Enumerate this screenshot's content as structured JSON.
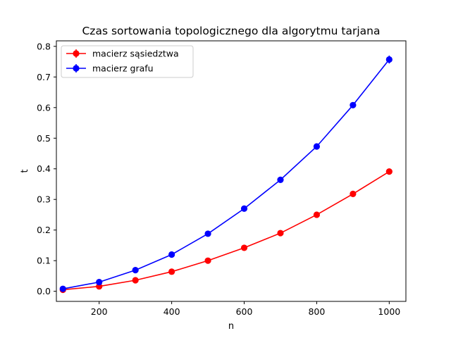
{
  "chart_data": {
    "type": "line",
    "title": "Czas sortowania topologicznego dla algorytmu tarjana",
    "xlabel": "n",
    "ylabel": "t",
    "xlim": [
      82,
      1046
    ],
    "ylim": [
      -0.033,
      0.818
    ],
    "x_ticks": [
      200,
      400,
      600,
      800,
      1000
    ],
    "y_ticks": [
      0.0,
      0.1,
      0.2,
      0.3,
      0.4,
      0.5,
      0.6,
      0.7,
      0.8
    ],
    "x_tick_labels": [
      "200",
      "400",
      "600",
      "800",
      "1000"
    ],
    "y_tick_labels": [
      "0.0",
      "0.1",
      "0.2",
      "0.3",
      "0.4",
      "0.5",
      "0.6",
      "0.7",
      "0.8"
    ],
    "grid": false,
    "legend_position": "top-left",
    "x": [
      100,
      200,
      300,
      400,
      500,
      600,
      700,
      800,
      900,
      1000
    ],
    "series": [
      {
        "name": "macierz sąsiedztwa",
        "color": "#ff0000",
        "values": [
          0.005,
          0.016,
          0.036,
          0.064,
          0.1,
          0.142,
          0.19,
          0.25,
          0.318,
          0.391
        ],
        "errors": [
          0.001,
          0.001,
          0.002,
          0.002,
          0.003,
          0.003,
          0.004,
          0.004,
          0.005,
          0.006
        ]
      },
      {
        "name": "macierz grafu",
        "color": "#0000ff",
        "values": [
          0.008,
          0.03,
          0.069,
          0.12,
          0.188,
          0.27,
          0.364,
          0.473,
          0.608,
          0.757
        ],
        "errors": [
          0.001,
          0.001,
          0.002,
          0.002,
          0.003,
          0.004,
          0.005,
          0.006,
          0.008,
          0.013
        ]
      }
    ]
  }
}
